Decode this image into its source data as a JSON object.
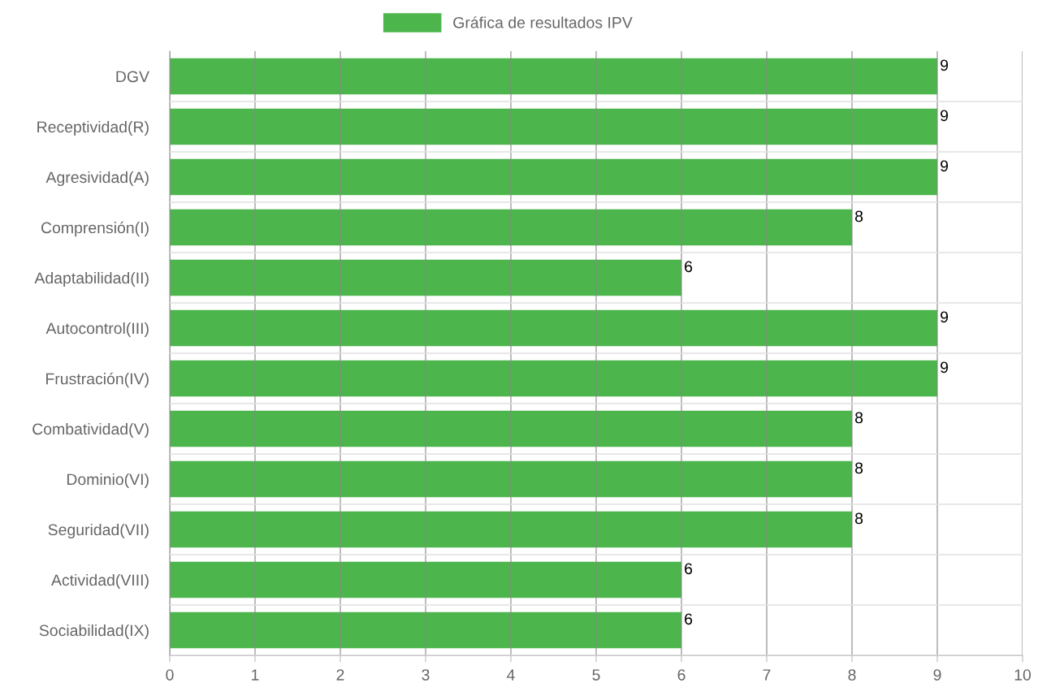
{
  "chart_data": {
    "type": "bar",
    "orientation": "horizontal",
    "categories": [
      "DGV",
      "Receptividad(R)",
      "Agresividad(A)",
      "Comprensión(I)",
      "Adaptabilidad(II)",
      "Autocontrol(III)",
      "Frustración(IV)",
      "Combatividad(V)",
      "Dominio(VI)",
      "Seguridad(VII)",
      "Actividad(VIII)",
      "Sociabilidad(IX)"
    ],
    "series": [
      {
        "name": "Gráfica de resultados IPV",
        "color": "#4cb54c",
        "values": [
          9,
          9,
          9,
          8,
          6,
          9,
          9,
          8,
          8,
          8,
          6,
          6
        ]
      }
    ],
    "xlim": [
      0,
      10
    ],
    "xticks": [
      0,
      1,
      2,
      3,
      4,
      5,
      6,
      7,
      8,
      9,
      10
    ],
    "grid": true,
    "legend": "top",
    "data_labels": true
  }
}
